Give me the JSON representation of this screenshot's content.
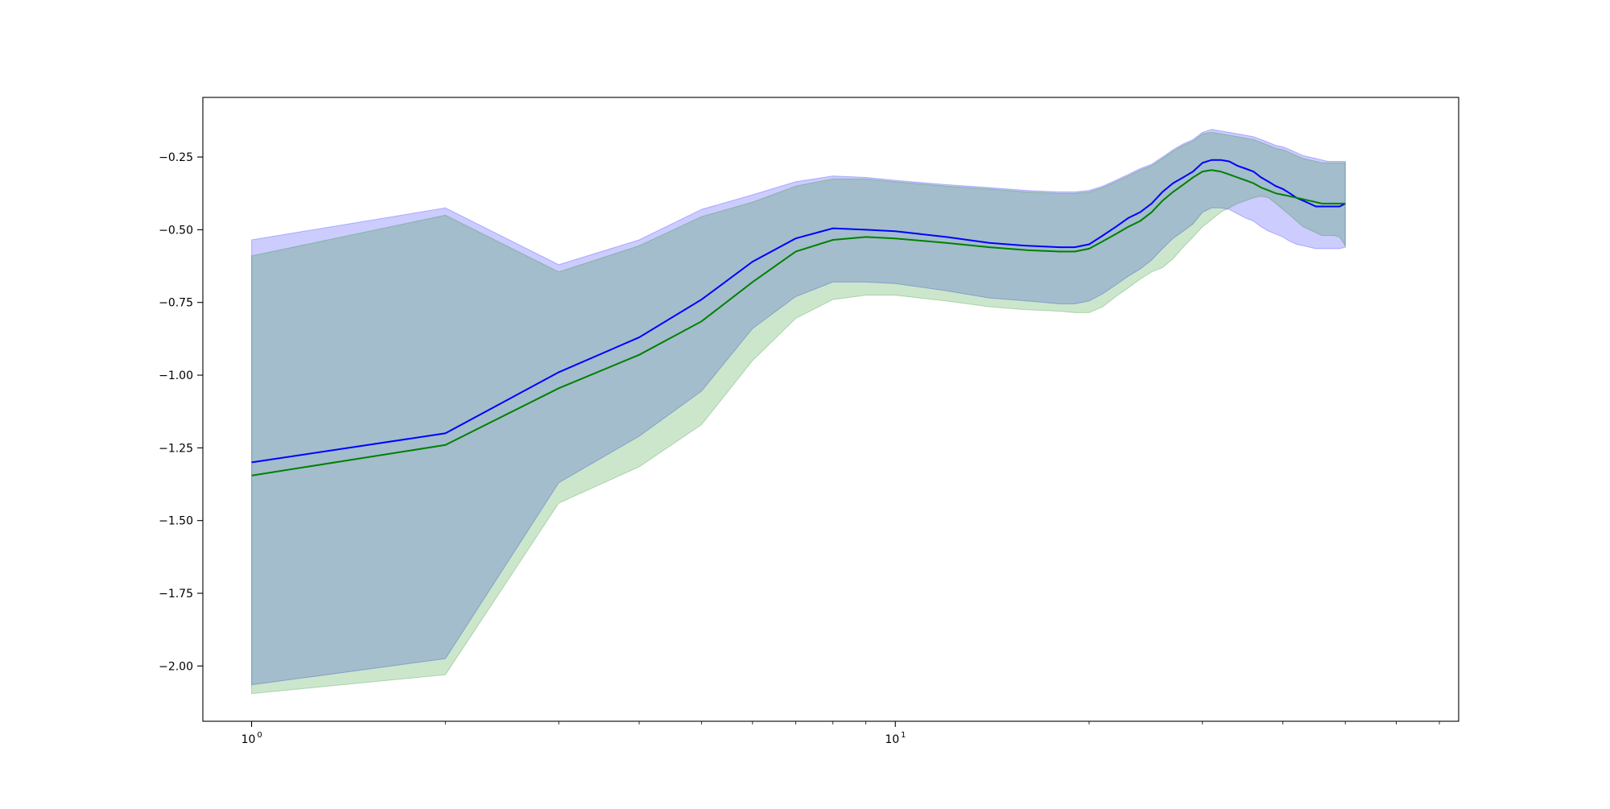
{
  "chart_data": {
    "type": "line",
    "title": "",
    "xlabel": "",
    "ylabel": "",
    "xscale": "log",
    "xlim": [
      0.84,
      75
    ],
    "ylim": [
      -2.19,
      -0.045
    ],
    "grid": false,
    "x_ticks": [
      {
        "value": 1,
        "label": "10",
        "exp": "0"
      },
      {
        "value": 10,
        "label": "10",
        "exp": "1"
      }
    ],
    "y_ticks": [
      {
        "value": -0.25,
        "label": "−0.25"
      },
      {
        "value": -0.5,
        "label": "−0.50"
      },
      {
        "value": -0.75,
        "label": "−0.75"
      },
      {
        "value": -1.0,
        "label": "−1.00"
      },
      {
        "value": -1.25,
        "label": "−1.25"
      },
      {
        "value": -1.5,
        "label": "−1.50"
      },
      {
        "value": -1.75,
        "label": "−1.75"
      },
      {
        "value": -2.0,
        "label": "−2.00"
      }
    ],
    "series": [
      {
        "color": "#0000ff",
        "band_color": "#0000ff",
        "band_alpha": 0.2,
        "x": [
          1,
          2,
          3,
          4,
          5,
          6,
          7,
          8,
          9,
          10,
          12,
          14,
          16,
          18,
          19,
          20,
          21,
          22,
          23,
          24,
          25,
          26,
          27,
          28,
          29,
          30,
          31,
          32,
          33,
          34,
          35,
          36,
          37,
          38,
          39,
          40,
          41,
          42,
          43,
          44,
          45,
          46,
          47,
          48,
          49,
          50
        ],
        "mean": [
          -1.3,
          -1.2,
          -0.99,
          -0.87,
          -0.74,
          -0.61,
          -0.53,
          -0.495,
          -0.5,
          -0.505,
          -0.525,
          -0.545,
          -0.555,
          -0.56,
          -0.56,
          -0.55,
          -0.52,
          -0.49,
          -0.46,
          -0.44,
          -0.41,
          -0.37,
          -0.34,
          -0.32,
          -0.3,
          -0.27,
          -0.26,
          -0.26,
          -0.265,
          -0.28,
          -0.29,
          -0.3,
          -0.32,
          -0.335,
          -0.35,
          -0.36,
          -0.375,
          -0.39,
          -0.4,
          -0.41,
          -0.42,
          -0.42,
          -0.42,
          -0.42,
          -0.42,
          -0.41
        ],
        "upper": [
          -0.535,
          -0.425,
          -0.62,
          -0.535,
          -0.43,
          -0.38,
          -0.335,
          -0.315,
          -0.32,
          -0.33,
          -0.345,
          -0.355,
          -0.365,
          -0.37,
          -0.37,
          -0.365,
          -0.35,
          -0.33,
          -0.31,
          -0.29,
          -0.275,
          -0.25,
          -0.225,
          -0.205,
          -0.19,
          -0.165,
          -0.155,
          -0.16,
          -0.165,
          -0.17,
          -0.175,
          -0.18,
          -0.19,
          -0.2,
          -0.21,
          -0.215,
          -0.225,
          -0.235,
          -0.245,
          -0.25,
          -0.255,
          -0.26,
          -0.265,
          -0.265,
          -0.265,
          -0.265
        ],
        "lower": [
          -2.065,
          -1.975,
          -1.37,
          -1.21,
          -1.055,
          -0.84,
          -0.73,
          -0.68,
          -0.68,
          -0.685,
          -0.71,
          -0.735,
          -0.745,
          -0.755,
          -0.755,
          -0.745,
          -0.72,
          -0.69,
          -0.66,
          -0.635,
          -0.605,
          -0.565,
          -0.53,
          -0.505,
          -0.48,
          -0.44,
          -0.425,
          -0.425,
          -0.43,
          -0.445,
          -0.46,
          -0.47,
          -0.49,
          -0.505,
          -0.515,
          -0.525,
          -0.54,
          -0.55,
          -0.555,
          -0.56,
          -0.565,
          -0.565,
          -0.565,
          -0.565,
          -0.565,
          -0.56
        ]
      },
      {
        "color": "#008000",
        "band_color": "#008000",
        "band_alpha": 0.2,
        "x": [
          1,
          2,
          3,
          4,
          5,
          6,
          7,
          8,
          9,
          10,
          12,
          14,
          16,
          18,
          19,
          20,
          21,
          22,
          23,
          24,
          25,
          26,
          27,
          28,
          29,
          30,
          31,
          32,
          33,
          34,
          35,
          36,
          37,
          38,
          39,
          40,
          41,
          42,
          43,
          44,
          45,
          46,
          47,
          48,
          49,
          50
        ],
        "mean": [
          -1.345,
          -1.24,
          -1.045,
          -0.93,
          -0.815,
          -0.68,
          -0.575,
          -0.535,
          -0.525,
          -0.53,
          -0.545,
          -0.56,
          -0.57,
          -0.575,
          -0.575,
          -0.565,
          -0.54,
          -0.515,
          -0.49,
          -0.47,
          -0.44,
          -0.4,
          -0.37,
          -0.345,
          -0.32,
          -0.3,
          -0.295,
          -0.3,
          -0.31,
          -0.32,
          -0.33,
          -0.34,
          -0.355,
          -0.365,
          -0.375,
          -0.38,
          -0.385,
          -0.39,
          -0.395,
          -0.4,
          -0.405,
          -0.41,
          -0.41,
          -0.41,
          -0.41,
          -0.41
        ],
        "upper": [
          -0.59,
          -0.45,
          -0.645,
          -0.555,
          -0.455,
          -0.405,
          -0.35,
          -0.325,
          -0.325,
          -0.335,
          -0.35,
          -0.36,
          -0.37,
          -0.375,
          -0.375,
          -0.37,
          -0.355,
          -0.335,
          -0.315,
          -0.295,
          -0.28,
          -0.255,
          -0.23,
          -0.21,
          -0.195,
          -0.17,
          -0.165,
          -0.17,
          -0.175,
          -0.18,
          -0.185,
          -0.19,
          -0.2,
          -0.21,
          -0.22,
          -0.225,
          -0.235,
          -0.245,
          -0.255,
          -0.26,
          -0.265,
          -0.27,
          -0.27,
          -0.27,
          -0.27,
          -0.27
        ],
        "lower": [
          -2.095,
          -2.03,
          -1.44,
          -1.315,
          -1.17,
          -0.95,
          -0.805,
          -0.74,
          -0.725,
          -0.725,
          -0.745,
          -0.765,
          -0.775,
          -0.78,
          -0.785,
          -0.785,
          -0.765,
          -0.73,
          -0.7,
          -0.67,
          -0.645,
          -0.63,
          -0.6,
          -0.56,
          -0.525,
          -0.49,
          -0.465,
          -0.44,
          -0.425,
          -0.41,
          -0.4,
          -0.39,
          -0.385,
          -0.39,
          -0.41,
          -0.43,
          -0.45,
          -0.47,
          -0.49,
          -0.5,
          -0.51,
          -0.52,
          -0.52,
          -0.52,
          -0.525,
          -0.555
        ]
      }
    ]
  }
}
